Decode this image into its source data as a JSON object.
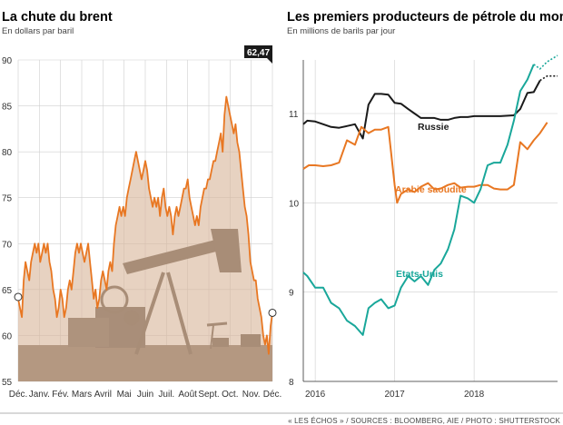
{
  "footer": "« LES ÉCHOS » / SOURCES : BLOOMBERG, AIE / PHOTO : SHUTTERSTOCK",
  "colors": {
    "brent": "#e87722",
    "brent_fill": "#d9b79b",
    "russia": "#1a1a1a",
    "saudi": "#e87722",
    "usa": "#19a79a",
    "grid": "#cfcfcf",
    "photo": "#6e5e52"
  },
  "chart_data": [
    {
      "type": "area",
      "title": "La chute du brent",
      "subtitle": "En dollars par baril",
      "x_labels": [
        "Déc.",
        "Janv.",
        "Fév.",
        "Mars",
        "Avril",
        "Mai",
        "Juin",
        "Juil.",
        "Août",
        "Sept.",
        "Oct.",
        "Nov.",
        "Déc."
      ],
      "y_ticks": [
        55,
        60,
        65,
        70,
        75,
        80,
        85,
        90
      ],
      "ylim": [
        55,
        90
      ],
      "last_value_label": "62,47",
      "grid": true,
      "series": [
        {
          "values": [
            64,
            63,
            62,
            66,
            68,
            67,
            66,
            68,
            69,
            70,
            69,
            70,
            68,
            69,
            70,
            69,
            70,
            68,
            67,
            65,
            64,
            62,
            63,
            65,
            64,
            62,
            63,
            65,
            66,
            65,
            67,
            69,
            70,
            69,
            70,
            69,
            68,
            69,
            70,
            68,
            66,
            64,
            65,
            63,
            64,
            66,
            67,
            66,
            65,
            67,
            68,
            67,
            70,
            72,
            73,
            74,
            73,
            74,
            73,
            75,
            76,
            77,
            78,
            79,
            80,
            79,
            78,
            77,
            78,
            79,
            78,
            76,
            75,
            74,
            75,
            74,
            75,
            73,
            75,
            76,
            74,
            73,
            74,
            73,
            71,
            73,
            74,
            73,
            74,
            75,
            76,
            76,
            77,
            75,
            74,
            73,
            72,
            73,
            72,
            74,
            75,
            76,
            76,
            77,
            77,
            78,
            79,
            79,
            80,
            81,
            82,
            80,
            84,
            86,
            85,
            84,
            83,
            82,
            83,
            81,
            80,
            78,
            76,
            74,
            73,
            71,
            68,
            67,
            66,
            66,
            64,
            63,
            62,
            60,
            59,
            60,
            58,
            61,
            62.47
          ]
        }
      ]
    },
    {
      "type": "line",
      "title": "Les premiers producteurs de pétrole du monde",
      "subtitle": "En millions de barils par jour",
      "x_labels": [
        "2016",
        "2017",
        "2018"
      ],
      "x_ticks": [
        2016,
        2017,
        2018
      ],
      "xlim": [
        2015.85,
        2019.05
      ],
      "y_ticks": [
        8,
        9,
        10,
        11
      ],
      "ylim": [
        8,
        11.6
      ],
      "grid": true,
      "series": [
        {
          "name": "Russie",
          "x": [
            2015.85,
            2015.9,
            2016.0,
            2016.1,
            2016.2,
            2016.3,
            2016.4,
            2016.5,
            2016.6,
            2016.67,
            2016.75,
            2016.83,
            2016.92,
            2017.0,
            2017.08,
            2017.17,
            2017.25,
            2017.33,
            2017.42,
            2017.5,
            2017.58,
            2017.67,
            2017.75,
            2017.83,
            2017.92,
            2018.0,
            2018.17,
            2018.33,
            2018.5,
            2018.58,
            2018.67,
            2018.75,
            2018.83
          ],
          "y": [
            10.88,
            10.92,
            10.91,
            10.88,
            10.85,
            10.84,
            10.86,
            10.88,
            10.72,
            11.1,
            11.22,
            11.22,
            11.21,
            11.12,
            11.11,
            11.05,
            11.0,
            10.95,
            10.95,
            10.95,
            10.93,
            10.93,
            10.95,
            10.96,
            10.96,
            10.97,
            10.97,
            10.97,
            10.98,
            11.05,
            11.23,
            11.24,
            11.37
          ]
        },
        {
          "name": "Arabie saoudite",
          "x": [
            2015.85,
            2015.92,
            2016.0,
            2016.1,
            2016.2,
            2016.3,
            2016.4,
            2016.5,
            2016.58,
            2016.67,
            2016.75,
            2016.83,
            2016.92,
            2017.0,
            2017.03,
            2017.08,
            2017.17,
            2017.25,
            2017.33,
            2017.42,
            2017.5,
            2017.58,
            2017.67,
            2017.75,
            2017.83,
            2017.92,
            2018.0,
            2018.08,
            2018.17,
            2018.25,
            2018.33,
            2018.42,
            2018.5,
            2018.58,
            2018.67,
            2018.75,
            2018.83,
            2018.92
          ],
          "y": [
            10.38,
            10.42,
            10.42,
            10.41,
            10.42,
            10.45,
            10.7,
            10.65,
            10.85,
            10.78,
            10.82,
            10.82,
            10.85,
            10.2,
            10.0,
            10.1,
            10.15,
            10.12,
            10.18,
            10.22,
            10.15,
            10.16,
            10.2,
            10.22,
            10.17,
            10.18,
            10.18,
            10.2,
            10.2,
            10.16,
            10.15,
            10.15,
            10.2,
            10.68,
            10.6,
            10.7,
            10.78,
            10.9
          ]
        },
        {
          "name": "Etats-Unis",
          "x": [
            2015.85,
            2015.9,
            2016.0,
            2016.1,
            2016.2,
            2016.3,
            2016.4,
            2016.5,
            2016.6,
            2016.67,
            2016.75,
            2016.83,
            2016.92,
            2017.0,
            2017.08,
            2017.17,
            2017.25,
            2017.33,
            2017.42,
            2017.5,
            2017.58,
            2017.67,
            2017.75,
            2017.83,
            2017.92,
            2018.0,
            2018.08,
            2018.17,
            2018.25,
            2018.33,
            2018.42,
            2018.5,
            2018.58,
            2018.67,
            2018.75
          ],
          "y": [
            9.22,
            9.18,
            9.05,
            9.05,
            8.88,
            8.82,
            8.68,
            8.62,
            8.52,
            8.82,
            8.88,
            8.92,
            8.82,
            8.85,
            9.05,
            9.18,
            9.12,
            9.18,
            9.08,
            9.25,
            9.32,
            9.48,
            9.7,
            10.08,
            10.05,
            10.0,
            10.15,
            10.42,
            10.45,
            10.45,
            10.65,
            10.92,
            11.25,
            11.38,
            11.55
          ]
        }
      ],
      "projection": [
        {
          "name": "Russie",
          "x": [
            2018.83,
            2018.92,
            2019.05
          ],
          "y": [
            11.37,
            11.42,
            11.42
          ]
        },
        {
          "name": "Etats-Unis",
          "x": [
            2018.75,
            2018.83,
            2018.92,
            2019.05
          ],
          "y": [
            11.55,
            11.5,
            11.58,
            11.65
          ]
        }
      ]
    }
  ]
}
